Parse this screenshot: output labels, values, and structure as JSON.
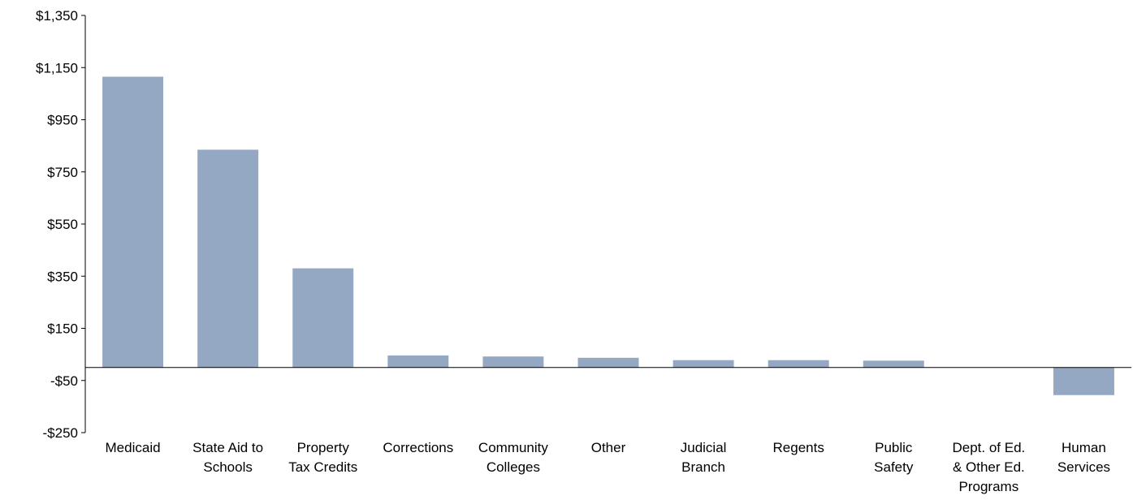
{
  "chart_data": {
    "type": "bar",
    "title": "",
    "xlabel": "",
    "ylabel": "",
    "ylim": [
      -250,
      1350
    ],
    "yticks": [
      1350,
      1150,
      950,
      750,
      550,
      350,
      150,
      -50,
      -250
    ],
    "ytick_labels": [
      "$1,350",
      "$1,150",
      "$950",
      "$750",
      "$550",
      "$350",
      "$150",
      "-$50",
      "-$250"
    ],
    "grid": false,
    "bar_color": "#94a8c4",
    "categories": [
      [
        "Medicaid"
      ],
      [
        "State Aid to",
        "Schools"
      ],
      [
        "Property",
        "Tax Credits"
      ],
      [
        "Corrections"
      ],
      [
        "Community",
        "Colleges"
      ],
      [
        "Other"
      ],
      [
        "Judicial",
        "Branch"
      ],
      [
        "Regents"
      ],
      [
        "Public",
        "Safety"
      ],
      [
        "Dept. of Ed.",
        "& Other Ed.",
        "Programs"
      ],
      [
        "Human",
        "Services"
      ]
    ],
    "values": [
      1115,
      835,
      380,
      46,
      42,
      37,
      28,
      28,
      26,
      0,
      -106
    ]
  }
}
